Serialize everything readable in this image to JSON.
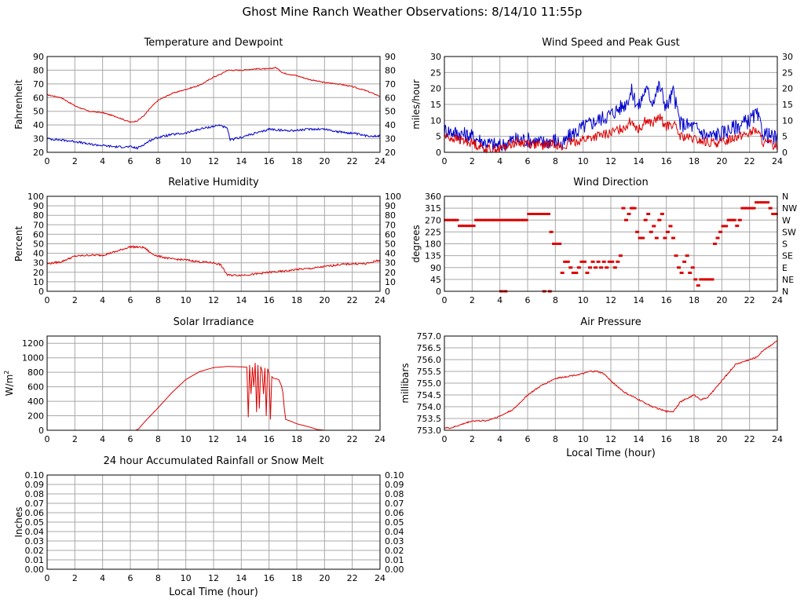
{
  "page": {
    "title": "Ghost Mine Ranch Weather Observations: 8/14/10 11:55p"
  },
  "colors": {
    "red": "#dd0000",
    "blue": "#0000cc",
    "grid": "#a8a8a8"
  },
  "chart_data": [
    {
      "id": "temperature",
      "type": "line",
      "title": "Temperature and Dewpoint",
      "ylabel": "Fahrenheit",
      "xlabel": "",
      "xlim": [
        0,
        24
      ],
      "ylim": [
        20,
        90
      ],
      "xticks": [
        0,
        2,
        4,
        6,
        8,
        10,
        12,
        14,
        16,
        18,
        20,
        22,
        24
      ],
      "yticks": [
        20,
        30,
        40,
        50,
        60,
        70,
        80,
        90
      ],
      "yticks_right": [
        "20",
        "30",
        "40",
        "50",
        "60",
        "70",
        "80",
        "90"
      ],
      "grid": true,
      "series": [
        {
          "color": "red",
          "jitter": 0.4,
          "x": [
            0,
            1,
            2,
            3,
            4,
            5,
            6,
            6.5,
            7,
            7.5,
            8,
            9,
            10,
            11,
            12,
            12.5,
            13,
            14,
            15,
            16,
            16.5,
            17,
            18,
            19,
            20,
            21,
            22,
            23,
            24
          ],
          "y": [
            62,
            60,
            54,
            50,
            49,
            46,
            42,
            43,
            47,
            53,
            58,
            63,
            66,
            69,
            75,
            77,
            80,
            80,
            81,
            81,
            82,
            78,
            76,
            73,
            71,
            70,
            68,
            65,
            61
          ]
        },
        {
          "color": "blue",
          "jitter": 0.8,
          "x": [
            0,
            1,
            2,
            3,
            4,
            5,
            6,
            6.5,
            7,
            7.5,
            8,
            9,
            10,
            11,
            12,
            12.5,
            13,
            13.2,
            14,
            15,
            15.5,
            16,
            17,
            18,
            19,
            20,
            21,
            22,
            23,
            24
          ],
          "y": [
            30,
            29,
            28,
            26,
            25,
            24,
            24,
            23,
            26,
            29,
            31,
            33,
            34,
            37,
            39,
            40,
            37,
            29,
            31,
            34,
            35,
            37,
            36,
            36,
            37,
            37,
            35,
            34,
            32,
            32
          ]
        }
      ]
    },
    {
      "id": "wind-speed",
      "type": "line",
      "title": "Wind Speed and Peak Gust",
      "ylabel": "miles/hour",
      "xlabel": "",
      "xlim": [
        0,
        24
      ],
      "ylim": [
        0,
        30
      ],
      "xticks": [
        0,
        2,
        4,
        6,
        8,
        10,
        12,
        14,
        16,
        18,
        20,
        22,
        24
      ],
      "yticks": [
        0,
        5,
        10,
        15,
        20,
        25,
        30
      ],
      "yticks_right": [
        "0",
        "5",
        "10",
        "15",
        "20",
        "25",
        "30"
      ],
      "grid": true,
      "series": [
        {
          "color": "blue",
          "jitter": 2.5,
          "x": [
            0,
            1,
            2,
            3,
            4,
            5,
            6,
            7,
            8,
            8.5,
            9,
            10,
            11,
            12,
            13,
            13.5,
            14,
            14.5,
            15,
            15.5,
            16,
            16.5,
            17,
            18,
            19,
            20,
            21,
            22,
            22.5,
            23,
            24
          ],
          "y": [
            7,
            6,
            5,
            3,
            2,
            4,
            4,
            3,
            4,
            2,
            5,
            8,
            10,
            12,
            15,
            19,
            14,
            20,
            16,
            21,
            14,
            19,
            9,
            8,
            5,
            6,
            8,
            10,
            12,
            6,
            4
          ]
        },
        {
          "color": "red",
          "jitter": 1.5,
          "x": [
            0,
            1,
            2,
            3,
            4,
            5,
            6,
            7,
            8,
            8.5,
            9,
            10,
            11,
            12,
            13,
            13.5,
            14,
            14.5,
            15,
            15.5,
            16,
            16.5,
            17,
            18,
            19,
            20,
            21,
            22,
            22.5,
            23,
            24
          ],
          "y": [
            5,
            4,
            3,
            1,
            1,
            3,
            3,
            2,
            3,
            1,
            3,
            4,
            5,
            6,
            8,
            10,
            7,
            10,
            9,
            11,
            8,
            9,
            5,
            4,
            3,
            3,
            5,
            6,
            7,
            3,
            2
          ]
        }
      ]
    },
    {
      "id": "humidity",
      "type": "line",
      "title": "Relative Humidity",
      "ylabel": "Percent",
      "xlabel": "",
      "xlim": [
        0,
        24
      ],
      "ylim": [
        0,
        100
      ],
      "xticks": [
        0,
        2,
        4,
        6,
        8,
        10,
        12,
        14,
        16,
        18,
        20,
        22,
        24
      ],
      "yticks": [
        0,
        10,
        20,
        30,
        40,
        50,
        60,
        70,
        80,
        90,
        100
      ],
      "yticks_right": [
        "0",
        "10",
        "20",
        "30",
        "40",
        "50",
        "60",
        "70",
        "80",
        "90",
        "100"
      ],
      "grid": true,
      "series": [
        {
          "color": "red",
          "jitter": 1.0,
          "x": [
            0,
            1,
            2,
            3,
            4,
            5,
            6,
            7,
            7.5,
            8,
            9,
            10,
            11,
            12,
            12.5,
            13,
            14,
            15,
            16,
            17,
            18,
            19,
            20,
            21,
            22,
            23,
            24
          ],
          "y": [
            29,
            31,
            37,
            38,
            38,
            42,
            47,
            46,
            40,
            37,
            34,
            33,
            31,
            30,
            28,
            17,
            17,
            18,
            20,
            21,
            23,
            24,
            26,
            28,
            29,
            29,
            33
          ]
        }
      ]
    },
    {
      "id": "wind-direction",
      "type": "scatter",
      "title": "Wind Direction",
      "ylabel": "degrees",
      "xlabel": "",
      "xlim": [
        0,
        24
      ],
      "ylim": [
        0,
        360
      ],
      "xticks": [
        0,
        2,
        4,
        6,
        8,
        10,
        12,
        14,
        16,
        18,
        20,
        22,
        24
      ],
      "yticks": [
        0,
        45,
        90,
        135,
        180,
        225,
        270,
        315,
        360
      ],
      "yticks_right": [
        "N",
        "NE",
        "E",
        "SE",
        "S",
        "SW",
        "W",
        "NW",
        "N"
      ],
      "grid": true,
      "series": [
        {
          "color": "red",
          "x": [
            0.1,
            0.3,
            0.5,
            0.7,
            0.9,
            1.1,
            1.3,
            1.5,
            1.7,
            1.9,
            2.1,
            2.3,
            2.5,
            2.7,
            2.9,
            3.1,
            3.3,
            3.5,
            3.7,
            3.9,
            4.1,
            4.3,
            4.5,
            4.7,
            4.9,
            5.1,
            5.3,
            5.5,
            5.7,
            5.9,
            6.1,
            6.3,
            6.5,
            6.7,
            6.9,
            7.1,
            7.3,
            7.5,
            7.7,
            7.9,
            8.1,
            8.3,
            8.5,
            8.7,
            8.9,
            9.1,
            9.3,
            9.5,
            9.7,
            9.9,
            10.1,
            10.3,
            10.5,
            10.7,
            10.9,
            11.1,
            11.3,
            11.5,
            11.7,
            11.9,
            12.1,
            12.3,
            12.5,
            12.7,
            12.9,
            13.1,
            13.3,
            13.5,
            13.7,
            13.9,
            14.1,
            14.3,
            14.5,
            14.7,
            14.9,
            15.1,
            15.3,
            15.5,
            15.7,
            15.9,
            16.1,
            16.3,
            16.5,
            16.7,
            16.9,
            17.1,
            17.3,
            17.5,
            17.7,
            17.9,
            18.1,
            18.3,
            18.5,
            18.7,
            18.9,
            19.1,
            19.3,
            19.5,
            19.7,
            19.9,
            20.1,
            20.3,
            20.5,
            20.7,
            20.9,
            21.1,
            21.3,
            21.5,
            21.7,
            21.9,
            22.1,
            22.3,
            22.5,
            22.7,
            22.9,
            23.1,
            23.3,
            23.5,
            23.7,
            23.9,
            4.1,
            4.4,
            7.2,
            7.6
          ],
          "y": [
            270,
            270,
            270,
            270,
            270,
            248,
            248,
            248,
            248,
            248,
            248,
            270,
            270,
            270,
            270,
            270,
            270,
            270,
            270,
            270,
            270,
            270,
            270,
            270,
            270,
            270,
            270,
            270,
            270,
            270,
            293,
            293,
            293,
            293,
            293,
            293,
            293,
            293,
            225,
            180,
            180,
            180,
            70,
            112,
            112,
            90,
            70,
            70,
            90,
            112,
            112,
            70,
            90,
            112,
            90,
            112,
            90,
            112,
            90,
            112,
            112,
            90,
            112,
            135,
            315,
            270,
            293,
            315,
            315,
            225,
            202,
            202,
            270,
            293,
            225,
            247,
            202,
            270,
            293,
            202,
            225,
            247,
            202,
            135,
            90,
            70,
            112,
            135,
            70,
            90,
            45,
            22,
            45,
            45,
            45,
            45,
            45,
            180,
            202,
            225,
            247,
            247,
            270,
            270,
            270,
            248,
            270,
            315,
            315,
            315,
            315,
            315,
            337,
            337,
            337,
            337,
            337,
            315,
            293,
            293,
            0,
            0,
            0,
            0
          ]
        }
      ]
    },
    {
      "id": "solar",
      "type": "line",
      "title": "Solar Irradiance",
      "ylabel": "W/m2",
      "xlabel": "",
      "xlim": [
        0,
        24
      ],
      "ylim": [
        0,
        1300
      ],
      "xticks": [
        0,
        2,
        4,
        6,
        8,
        10,
        12,
        14,
        16,
        18,
        20,
        22,
        24
      ],
      "yticks": [
        0,
        200,
        400,
        600,
        800,
        1000,
        1200
      ],
      "yticks_right": [],
      "grid": true,
      "series": [
        {
          "color": "red",
          "jitter": 0,
          "x": [
            0,
            6.4,
            6.6,
            7,
            8,
            9,
            10,
            11,
            12,
            13,
            14,
            14.4,
            14.5,
            14.6,
            14.7,
            14.8,
            14.9,
            15,
            15.1,
            15.2,
            15.3,
            15.4,
            15.5,
            15.6,
            15.7,
            15.8,
            15.9,
            16,
            16.1,
            16.2,
            16.3,
            16.5,
            16.7,
            16.9,
            17,
            17.1,
            17.2,
            17.5,
            18,
            19,
            19.5,
            20,
            24
          ],
          "y": [
            0,
            0,
            20,
            110,
            310,
            520,
            700,
            810,
            865,
            880,
            875,
            870,
            180,
            900,
            500,
            870,
            600,
            930,
            250,
            900,
            300,
            880,
            820,
            500,
            860,
            200,
            850,
            780,
            150,
            740,
            720,
            710,
            700,
            610,
            520,
            300,
            150,
            130,
            90,
            40,
            10,
            0,
            0
          ]
        }
      ]
    },
    {
      "id": "pressure",
      "type": "line",
      "title": "Air Pressure",
      "ylabel": "millibars",
      "xlabel": "Local Time (hour)",
      "xlim": [
        0,
        24
      ],
      "ylim": [
        753.0,
        757.0
      ],
      "xticks": [
        0,
        2,
        4,
        6,
        8,
        10,
        12,
        14,
        16,
        18,
        20,
        22,
        24
      ],
      "yticks": [
        753.0,
        753.5,
        754.0,
        754.5,
        755.0,
        755.5,
        756.0,
        756.5,
        757.0
      ],
      "yticklabels": [
        "753.0",
        "753.5",
        "754.0",
        "754.5",
        "755.0",
        "755.5",
        "756.0",
        "756.5",
        "757.0"
      ],
      "yticks_right": [],
      "grid": true,
      "series": [
        {
          "color": "red",
          "jitter": 0.03,
          "x": [
            0,
            0.5,
            1,
            1.5,
            2,
            3,
            3.5,
            4,
            5,
            6,
            7,
            8,
            9,
            10,
            10.5,
            11,
            11.5,
            12,
            13,
            14,
            15,
            15.5,
            16,
            16.5,
            17,
            18,
            18.5,
            19,
            20,
            21,
            22,
            22.5,
            23,
            23.5,
            24
          ],
          "y": [
            753.1,
            753.1,
            753.2,
            753.3,
            753.4,
            753.4,
            753.5,
            753.6,
            753.9,
            754.5,
            754.9,
            755.2,
            755.3,
            755.4,
            755.5,
            755.5,
            755.4,
            755.1,
            754.6,
            754.3,
            754.0,
            753.9,
            753.8,
            753.8,
            754.2,
            754.5,
            754.3,
            754.4,
            755.1,
            755.8,
            756.0,
            756.1,
            756.4,
            756.6,
            756.8
          ]
        }
      ]
    },
    {
      "id": "rainfall",
      "type": "line",
      "title": "24 hour Accumulated Rainfall or Snow Melt",
      "ylabel": "Inches",
      "xlabel": "Local Time (hour)",
      "xlim": [
        0,
        24
      ],
      "ylim": [
        0,
        0.1
      ],
      "xticks": [
        0,
        2,
        4,
        6,
        8,
        10,
        12,
        14,
        16,
        18,
        20,
        22,
        24
      ],
      "yticks": [
        0,
        0.01,
        0.02,
        0.03,
        0.04,
        0.05,
        0.06,
        0.07,
        0.08,
        0.09,
        0.1
      ],
      "yticklabels": [
        "0.00",
        "0.01",
        "0.02",
        "0.03",
        "0.04",
        "0.05",
        "0.06",
        "0.07",
        "0.08",
        "0.09",
        "0.10"
      ],
      "yticks_right": [
        "0.00",
        "0.01",
        "0.02",
        "0.03",
        "0.04",
        "0.05",
        "0.06",
        "0.07",
        "0.08",
        "0.09",
        "0.10"
      ],
      "grid": true,
      "series": [
        {
          "color": "red",
          "jitter": 0,
          "x": [
            0,
            24
          ],
          "y": [
            0,
            0
          ]
        }
      ]
    }
  ]
}
